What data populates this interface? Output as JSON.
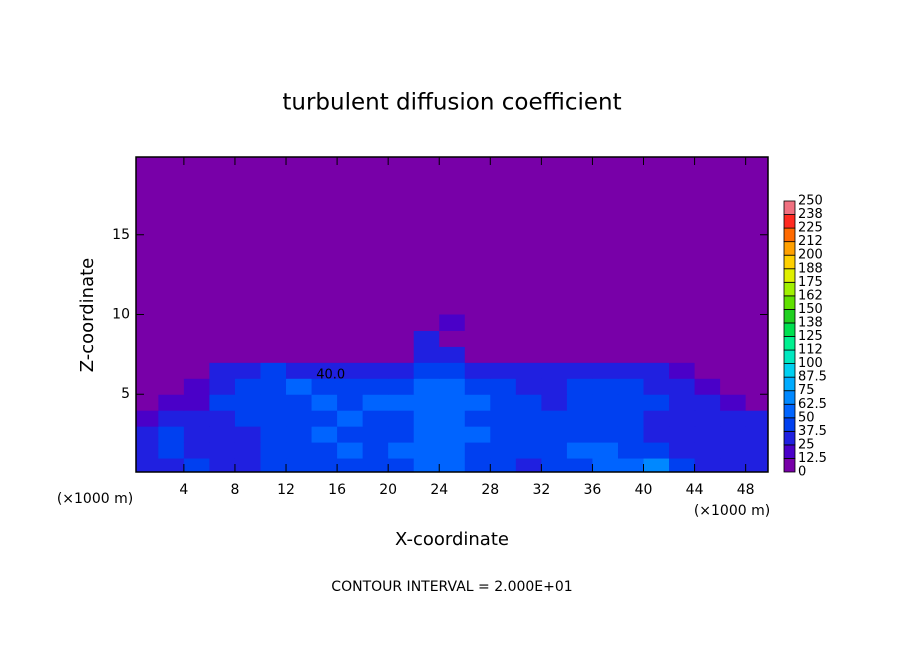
{
  "chart_data": {
    "type": "contour",
    "title": "turbulent diffusion coefficient",
    "xlabel": "X-coordinate",
    "ylabel": "Z-coordinate",
    "xlabel_units": "(×1000 m)",
    "ylabel_units": "(×1000 m)",
    "footnote": "CONTOUR INTERVAL = 2.000E+01",
    "xlim": [
      0.25,
      49.75
    ],
    "ylim": [
      0.125,
      19.875
    ],
    "xticks": [
      4,
      8,
      12,
      16,
      20,
      24,
      28,
      32,
      36,
      40,
      44,
      48
    ],
    "yticks": [
      5,
      10,
      15
    ],
    "contour_labels": [
      {
        "x": 15.5,
        "y": 6.2,
        "value": 40,
        "label": "40.0"
      }
    ],
    "field": {
      "x": [
        1,
        3,
        5,
        7,
        9,
        11,
        13,
        15,
        17,
        19,
        21,
        23,
        25,
        27,
        29,
        31,
        33,
        35,
        37,
        39,
        41,
        43,
        45,
        47,
        49
      ],
      "z": [
        0.5,
        1.5,
        2.5,
        3.5,
        4.5,
        5.5,
        6.5,
        7.5,
        8.5,
        9.5
      ],
      "values": [
        [
          30,
          35,
          40,
          35,
          35,
          40,
          45,
          40,
          45,
          40,
          45,
          55,
          50,
          45,
          40,
          35,
          45,
          40,
          50,
          55,
          70,
          40,
          35,
          30,
          30
        ],
        [
          35,
          40,
          35,
          30,
          35,
          40,
          40,
          45,
          50,
          45,
          50,
          60,
          55,
          45,
          40,
          40,
          45,
          55,
          60,
          45,
          40,
          35,
          30,
          30,
          35
        ],
        [
          25,
          40,
          30,
          30,
          35,
          45,
          45,
          50,
          45,
          40,
          45,
          55,
          60,
          50,
          45,
          40,
          40,
          45,
          45,
          40,
          35,
          30,
          30,
          35,
          30
        ],
        [
          15,
          35,
          25,
          35,
          40,
          45,
          40,
          45,
          50,
          45,
          45,
          60,
          55,
          45,
          45,
          40,
          45,
          40,
          40,
          40,
          35,
          35,
          30,
          30,
          25
        ],
        [
          10,
          15,
          20,
          40,
          45,
          40,
          45,
          50,
          45,
          50,
          50,
          55,
          60,
          50,
          45,
          40,
          35,
          40,
          45,
          40,
          40,
          35,
          30,
          20,
          10
        ],
        [
          5,
          10,
          20,
          35,
          40,
          45,
          50,
          45,
          45,
          45,
          45,
          55,
          50,
          45,
          45,
          35,
          30,
          40,
          40,
          40,
          35,
          30,
          20,
          10,
          5
        ],
        [
          0,
          0,
          10,
          30,
          35,
          40,
          35,
          30,
          35,
          35,
          30,
          45,
          40,
          35,
          35,
          30,
          30,
          35,
          30,
          35,
          30,
          20,
          10,
          0,
          0
        ],
        [
          0,
          0,
          0,
          5,
          10,
          10,
          10,
          10,
          10,
          5,
          10,
          30,
          25,
          10,
          10,
          10,
          5,
          5,
          10,
          10,
          5,
          0,
          0,
          0,
          0
        ],
        [
          0,
          0,
          0,
          0,
          0,
          0,
          0,
          0,
          0,
          0,
          0,
          25,
          10,
          0,
          0,
          0,
          0,
          0,
          0,
          0,
          0,
          0,
          0,
          0,
          0
        ],
        [
          0,
          0,
          0,
          0,
          0,
          0,
          0,
          0,
          0,
          0,
          0,
          10,
          20,
          0,
          0,
          0,
          0,
          0,
          0,
          0,
          0,
          0,
          0,
          0,
          0
        ]
      ]
    },
    "colorbar": {
      "levels": [
        0,
        12.5,
        25,
        37.5,
        50,
        62.5,
        75,
        87.5,
        100,
        {
          "value": 112.5,
          "label": "112"
        },
        125,
        {
          "value": 137.5,
          "label": "138"
        },
        150,
        {
          "value": 162.5,
          "label": "162"
        },
        175,
        {
          "value": 187.5,
          "label": "188"
        },
        200,
        {
          "value": 212.5,
          "label": "212"
        },
        225,
        {
          "value": 237.5,
          "label": "238"
        },
        250
      ],
      "colors": [
        "#7800a8",
        "#4a00c8",
        "#2020e0",
        "#0040f0",
        "#0064ff",
        "#0088ff",
        "#00acff",
        "#00d0f0",
        "#00e8c0",
        "#00f090",
        "#00e050",
        "#20d020",
        "#60e000",
        "#a0f000",
        "#e0f000",
        "#ffd000",
        "#ffa000",
        "#ff6a00",
        "#ff2a20",
        "#f07080"
      ]
    }
  }
}
